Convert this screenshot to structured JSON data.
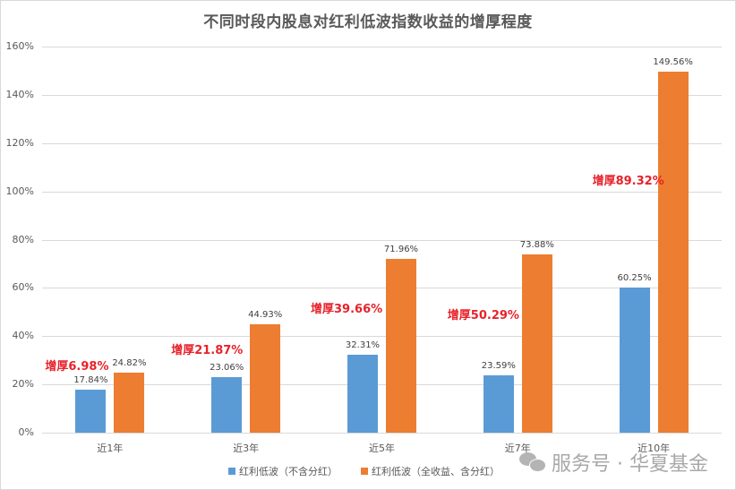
{
  "chart_data": {
    "type": "bar",
    "title": "不同时段内股息对红利低波指数收益的增厚程度",
    "xlabel": "",
    "ylabel": "",
    "ylim": [
      0,
      160
    ],
    "yticks": [
      "0%",
      "20%",
      "40%",
      "60%",
      "80%",
      "100%",
      "120%",
      "140%",
      "160%"
    ],
    "grid": true,
    "legend_position": "bottom",
    "categories": [
      "近1年",
      "近3年",
      "近5年",
      "近7年",
      "近10年"
    ],
    "series": [
      {
        "name": "红利低波（不含分红）",
        "color": "#5b9bd5",
        "values": [
          17.84,
          23.06,
          32.31,
          23.59,
          60.25
        ],
        "labels": [
          "17.84%",
          "23.06%",
          "32.31%",
          "23.59%",
          "60.25%"
        ]
      },
      {
        "name": "红利低波（全收益、含分红）",
        "color": "#ed7d31",
        "values": [
          24.82,
          44.93,
          71.96,
          73.88,
          149.56
        ],
        "labels": [
          "24.82%",
          "44.93%",
          "71.96%",
          "73.88%",
          "149.56%"
        ]
      }
    ],
    "annotations": [
      {
        "text": "增厚6.98%",
        "category": "近1年"
      },
      {
        "text": "增厚21.87%",
        "category": "近3年"
      },
      {
        "text": "增厚39.66%",
        "category": "近5年"
      },
      {
        "text": "增厚50.29%",
        "category": "近7年"
      },
      {
        "text": "增厚89.32%",
        "category": "近10年"
      }
    ],
    "annotation_color": "#e8222a"
  },
  "watermark": {
    "text": "服务号 · 华夏基金",
    "icon": "wechat-icon"
  }
}
